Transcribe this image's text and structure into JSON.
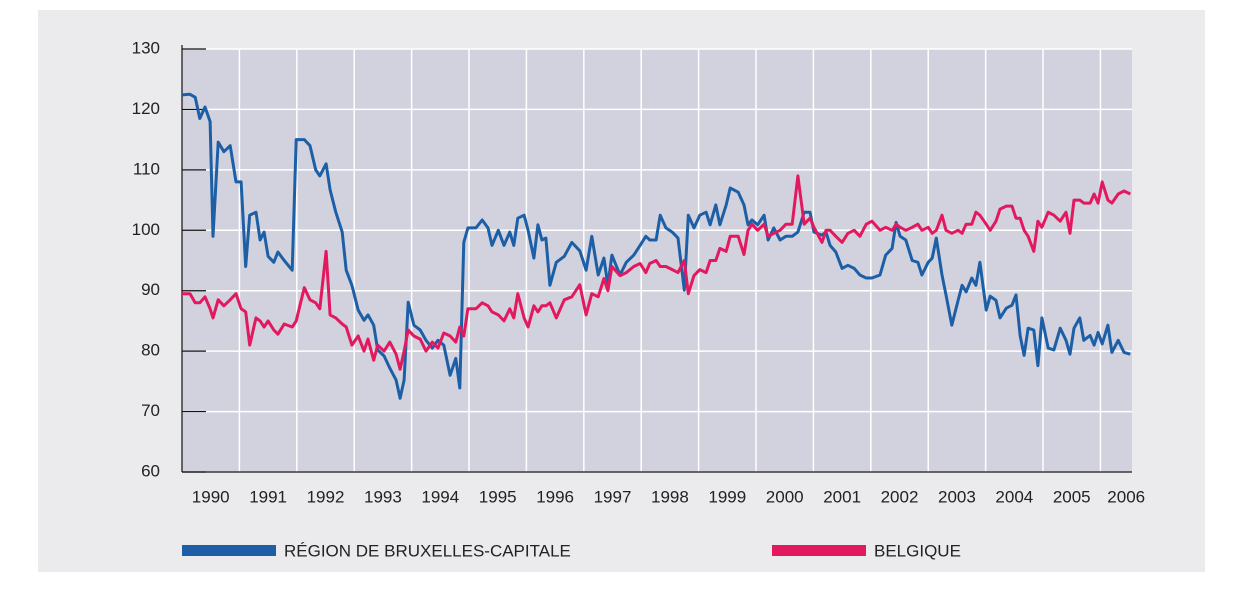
{
  "chart_data": {
    "type": "line",
    "x": [
      1990,
      1990.14,
      1990.23,
      1990.31,
      1990.4,
      1990.49,
      1990.54,
      1990.63,
      1990.73,
      1990.84,
      1990.94,
      1991.03,
      1991.11,
      1991.18,
      1991.29,
      1991.36,
      1991.43,
      1991.5,
      1991.6,
      1991.67,
      1991.78,
      1991.92,
      1991.99,
      1992.13,
      1992.23,
      1992.33,
      1992.4,
      1992.51,
      1992.58,
      1992.68,
      1992.79,
      1992.86,
      1992.96,
      1993.07,
      1993.17,
      1993.24,
      1993.34,
      1993.41,
      1993.52,
      1993.62,
      1993.73,
      1993.8,
      1993.87,
      1993.94,
      1994.04,
      1994.15,
      1994.25,
      1994.36,
      1994.46,
      1994.56,
      1994.67,
      1994.77,
      1994.84,
      1994.91,
      1994.98,
      1995.12,
      1995.23,
      1995.33,
      1995.4,
      1995.51,
      1995.61,
      1995.71,
      1995.78,
      1995.85,
      1995.96,
      1996.03,
      1996.13,
      1996.2,
      1996.27,
      1996.34,
      1996.41,
      1996.52,
      1996.66,
      1996.79,
      1996.93,
      1997.04,
      1997.14,
      1997.25,
      1997.35,
      1997.42,
      1997.49,
      1997.63,
      1997.74,
      1997.87,
      1997.98,
      1998.08,
      1998.15,
      1998.26,
      1998.33,
      1998.43,
      1998.54,
      1998.64,
      1998.75,
      1998.82,
      1998.92,
      1999.02,
      1999.13,
      1999.2,
      1999.3,
      1999.37,
      1999.48,
      1999.55,
      1999.69,
      1999.79,
      1999.86,
      1999.93,
      2000.03,
      2000.14,
      2000.21,
      2000.31,
      2000.42,
      2000.52,
      2000.63,
      2000.73,
      2000.84,
      2000.94,
      2001.01,
      2001.15,
      2001.22,
      2001.29,
      2001.39,
      2001.5,
      2001.6,
      2001.71,
      2001.81,
      2001.92,
      2002.02,
      2002.16,
      2002.26,
      2002.37,
      2002.44,
      2002.51,
      2002.61,
      2002.72,
      2002.82,
      2002.89,
      2003,
      2003.07,
      2003.14,
      2003.24,
      2003.31,
      2003.41,
      2003.52,
      2003.59,
      2003.66,
      2003.76,
      2003.83,
      2003.9,
      2004.01,
      2004.08,
      2004.18,
      2004.25,
      2004.36,
      2004.46,
      2004.53,
      2004.6,
      2004.67,
      2004.74,
      2004.84,
      2004.91,
      2004.98,
      2005.09,
      2005.19,
      2005.3,
      2005.4,
      2005.47,
      2005.54,
      2005.64,
      2005.71,
      2005.82,
      2005.89,
      2005.96,
      2006.03,
      2006.13,
      2006.2,
      2006.31,
      2006.41,
      2006.52
    ],
    "series": [
      {
        "name": "RÉGION DE BRUXELLES-CAPITALE",
        "color": "#1d5fa6",
        "values": [
          122.4,
          122.5,
          122,
          118.5,
          120.4,
          118,
          99,
          114.6,
          113,
          114,
          108,
          108,
          94,
          102.5,
          103,
          98.4,
          99.7,
          95.7,
          94.7,
          96.4,
          95,
          93.4,
          115,
          115,
          114,
          110,
          109,
          111,
          106.7,
          103,
          99.7,
          93.4,
          90.9,
          86.8,
          85.1,
          86,
          84.3,
          80.2,
          79.2,
          77.2,
          75.2,
          72.2,
          75.2,
          88.1,
          84.3,
          83.5,
          81.8,
          80.5,
          81.8,
          81,
          76,
          78.8,
          73.9,
          98,
          100.4,
          100.4,
          101.7,
          100.4,
          97.5,
          100,
          97.5,
          99.7,
          97.5,
          102,
          102.5,
          100,
          95.4,
          100.9,
          98.4,
          98.7,
          90.9,
          94.7,
          95.7,
          98,
          96.6,
          93.4,
          99,
          92.6,
          95.4,
          90.9,
          95.9,
          92.6,
          94.7,
          95.9,
          97.5,
          99,
          98.4,
          98.4,
          102.5,
          100.4,
          99.7,
          98.7,
          90.1,
          102.5,
          100.4,
          102.5,
          103,
          100.9,
          104.2,
          100.9,
          104.2,
          107,
          106.3,
          104.2,
          100.9,
          101.7,
          100.9,
          102.5,
          98.4,
          100.4,
          98.4,
          99,
          99,
          99.7,
          103,
          103,
          99.7,
          99.2,
          99.7,
          97.5,
          96.4,
          93.7,
          94.2,
          93.7,
          92.6,
          92.1,
          92.1,
          92.6,
          95.9,
          97,
          101.3,
          99,
          98.4,
          95,
          94.7,
          92.6,
          94.7,
          95.4,
          98.7,
          92.6,
          89.3,
          84.3,
          88.4,
          90.9,
          89.8,
          92.1,
          90.9,
          94.7,
          86.8,
          89.1,
          88.4,
          85.5,
          87.1,
          87.6,
          89.3,
          82.6,
          79.3,
          83.8,
          83.5,
          77.6,
          85.5,
          80.5,
          80.2,
          83.8,
          81.8,
          79.5,
          83.8,
          85.5,
          81.8,
          82.6,
          81,
          83.1,
          81.2,
          84.3,
          79.8,
          81.8,
          79.8,
          79.5
        ]
      },
      {
        "name": "BELGIQUE",
        "color": "#e3195f",
        "values": [
          89.5,
          89.5,
          88,
          88,
          89,
          87,
          85.5,
          88.5,
          87.5,
          88.5,
          89.5,
          87,
          86.5,
          81,
          85.5,
          85,
          84,
          85,
          83.5,
          82.8,
          84.5,
          84,
          85,
          90.5,
          88.5,
          88,
          87,
          96.5,
          86,
          85.5,
          84.5,
          84,
          81,
          82.5,
          80,
          82,
          78.5,
          81,
          80,
          81.5,
          79.5,
          77,
          80,
          83.5,
          82.5,
          82,
          80,
          81.5,
          80.5,
          83,
          82.5,
          81.5,
          84,
          82.5,
          87,
          87,
          88,
          87.5,
          86.5,
          86,
          85,
          87,
          85.5,
          89.5,
          85.5,
          84,
          87.5,
          86.5,
          87.5,
          87.5,
          88,
          85.5,
          88.5,
          89,
          91,
          86,
          89.5,
          89,
          92,
          90,
          94,
          92.5,
          93,
          94,
          94.5,
          93,
          94.5,
          95,
          94,
          94,
          93.5,
          93,
          95,
          89.5,
          92.5,
          93.5,
          93,
          95,
          95,
          97,
          96.5,
          99,
          99,
          96,
          100,
          101,
          100,
          101,
          99,
          99.5,
          100,
          101,
          101,
          109,
          101,
          102,
          100.5,
          98,
          100,
          100,
          99,
          98,
          99.5,
          100,
          99,
          101,
          101.5,
          100,
          100.5,
          100,
          101,
          100.5,
          100,
          100.5,
          101,
          100,
          100.5,
          99.5,
          100,
          102.5,
          100,
          99.5,
          100,
          99.5,
          101,
          101,
          103,
          102.5,
          101,
          100,
          101.5,
          103.5,
          104,
          104,
          102,
          102,
          100,
          99,
          96.5,
          101.5,
          100.5,
          103,
          102.5,
          101.5,
          103,
          99.5,
          105,
          105,
          104.5,
          104.5,
          106,
          104.5,
          108,
          105,
          104.5,
          106,
          106.5,
          106
        ]
      }
    ],
    "xlim": [
      1990,
      2006.55
    ],
    "xticks": [
      1990,
      1991,
      1992,
      1993,
      1994,
      1995,
      1996,
      1997,
      1998,
      1999,
      2000,
      2001,
      2002,
      2003,
      2004,
      2005,
      2006
    ],
    "ylim": [
      60,
      130
    ],
    "yticks": [
      60,
      70,
      80,
      90,
      100,
      110,
      120,
      130
    ],
    "grid": true,
    "legend": "bottom"
  }
}
